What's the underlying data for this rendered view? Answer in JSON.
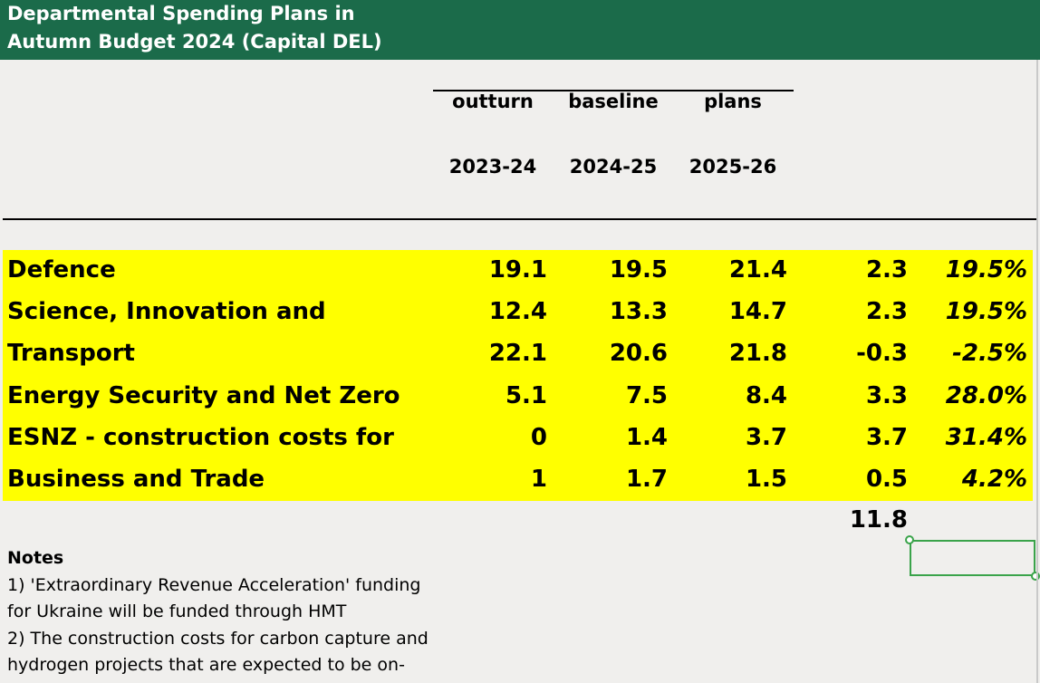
{
  "title": {
    "line1": "Departmental Spending Plans in",
    "line2": "Autumn Budget 2024 (Capital DEL)"
  },
  "headers": {
    "categories": [
      "outturn",
      "baseline",
      "plans"
    ],
    "years": [
      "2023-24",
      "2024-25",
      "2025-26"
    ]
  },
  "rows": [
    {
      "name": "Defence",
      "v1": "19.1",
      "v2": "19.5",
      "v3": "21.4",
      "change": "2.3",
      "pct": "19.5%"
    },
    {
      "name": "Science, Innovation and",
      "v1": "12.4",
      "v2": "13.3",
      "v3": "14.7",
      "change": "2.3",
      "pct": "19.5%"
    },
    {
      "name": "Transport",
      "v1": "22.1",
      "v2": "20.6",
      "v3": "21.8",
      "change": "-0.3",
      "pct": "-2.5%"
    },
    {
      "name": "Energy Security and Net Zero",
      "v1": "5.1",
      "v2": "7.5",
      "v3": "8.4",
      "change": "3.3",
      "pct": "28.0%"
    },
    {
      "name": "ESNZ - construction costs for",
      "v1": "0",
      "v2": "1.4",
      "v3": "3.7",
      "change": "3.7",
      "pct": "31.4%"
    },
    {
      "name": "Business and Trade",
      "v1": "1",
      "v2": "1.7",
      "v3": "1.5",
      "change": "0.5",
      "pct": "4.2%"
    }
  ],
  "total_change": "11.8",
  "notes": {
    "title": "Notes",
    "lines": [
      "1)  'Extraordinary Revenue Acceleration' funding",
      "for Ukraine will be funded through HMT",
      "2) The construction costs for carbon capture and",
      "hydrogen projects that are expected to be on-"
    ]
  },
  "colors": {
    "title_bg": "#1b6b4a",
    "highlight": "#ffff00",
    "sheet_bg": "#f0efed",
    "selection": "#3aa34a"
  }
}
